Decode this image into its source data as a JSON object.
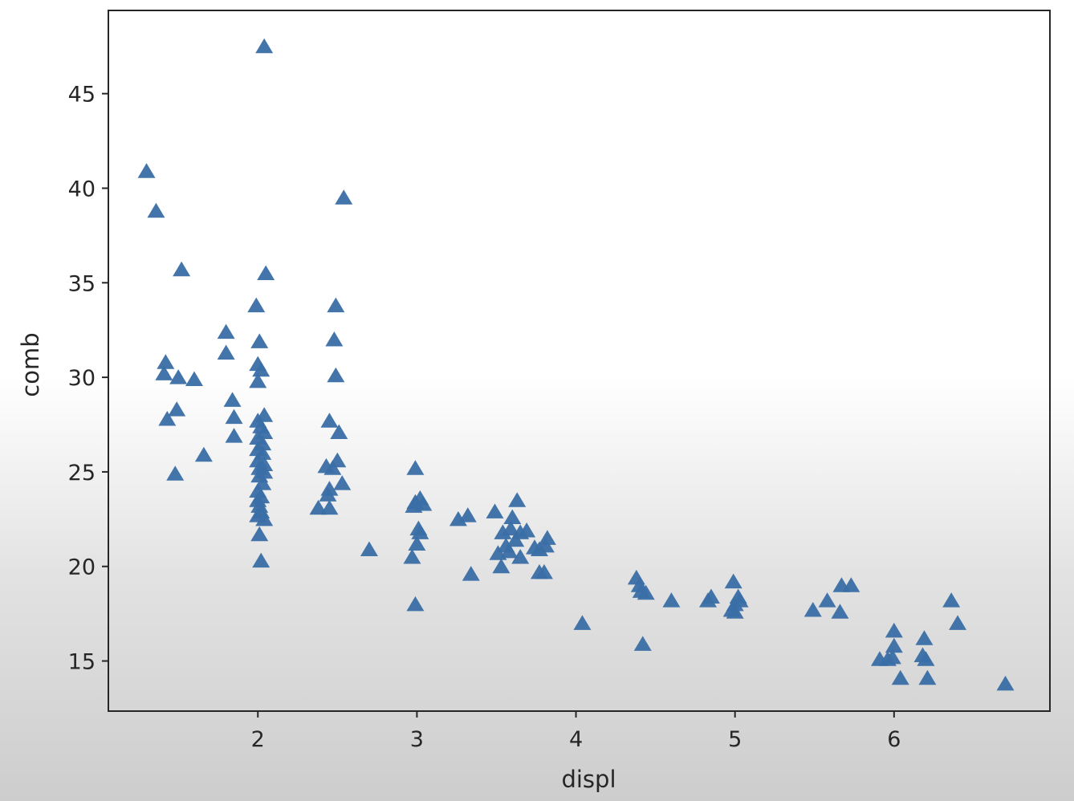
{
  "chart_data": {
    "type": "scatter",
    "title": "",
    "xlabel": "displ",
    "ylabel": "comb",
    "xlim": [
      1.06,
      6.98
    ],
    "ylim": [
      12.35,
      49.4
    ],
    "xticks": [
      2,
      3,
      4,
      5,
      6
    ],
    "yticks": [
      15,
      20,
      25,
      30,
      35,
      40,
      45
    ],
    "grid": false,
    "legend": "none",
    "marker": "triangle",
    "colors": {
      "marker": "#3a6ea5",
      "axis": "#262626"
    },
    "series": [
      {
        "x": [
          1.3,
          1.36,
          1.52,
          1.42,
          1.41,
          1.5,
          1.6,
          1.43,
          1.49,
          1.48,
          1.66,
          1.8,
          1.8,
          1.84,
          1.85,
          1.85,
          2.04,
          2.05,
          1.99,
          2.01,
          2.0,
          2.02,
          2.0,
          2.04,
          2.0,
          2.02,
          2.04,
          2.0,
          2.03,
          2.0,
          2.03,
          2.0,
          2.04,
          2.01,
          2.04,
          2.01,
          2.03,
          2.0,
          2.02,
          2.0,
          2.01,
          2.02,
          2.0,
          2.04,
          2.01,
          2.02,
          2.54,
          2.49,
          2.48,
          2.49,
          2.45,
          2.51,
          2.5,
          2.43,
          2.47,
          2.53,
          2.45,
          2.44,
          2.38,
          2.45,
          2.7,
          2.99,
          2.99,
          3.02,
          2.98,
          3.04,
          3.01,
          3.02,
          3.0,
          2.97,
          2.99,
          3.26,
          3.32,
          3.34,
          3.49,
          3.54,
          3.51,
          3.58,
          3.63,
          3.6,
          3.59,
          3.65,
          3.62,
          3.56,
          3.53,
          3.69,
          3.74,
          3.77,
          3.82,
          3.81,
          3.8,
          3.77,
          3.65,
          4.04,
          4.38,
          4.4,
          4.41,
          4.44,
          4.42,
          4.6,
          4.83,
          4.85,
          4.99,
          5.02,
          5.0,
          4.98,
          5.03,
          5.0,
          5.49,
          5.58,
          5.66,
          5.67,
          5.73,
          5.91,
          5.96,
          6.0,
          6.0,
          5.99,
          6.04,
          6.18,
          6.19,
          6.2,
          6.21,
          6.36,
          6.4,
          6.7
        ],
        "y": [
          40.9,
          38.8,
          35.7,
          30.8,
          30.2,
          30.0,
          29.9,
          27.8,
          28.3,
          24.9,
          25.9,
          32.4,
          31.3,
          28.8,
          27.9,
          26.9,
          47.5,
          35.5,
          33.8,
          31.9,
          30.7,
          30.4,
          29.8,
          28.0,
          27.7,
          27.4,
          27.1,
          26.8,
          26.5,
          26.2,
          26.0,
          25.6,
          25.4,
          25.2,
          25.0,
          24.8,
          24.4,
          24.0,
          23.7,
          23.5,
          23.2,
          22.9,
          22.7,
          22.5,
          21.7,
          20.3,
          39.5,
          33.8,
          32.0,
          30.1,
          27.7,
          27.1,
          25.6,
          25.3,
          25.2,
          24.4,
          24.1,
          23.8,
          23.1,
          23.1,
          20.9,
          25.2,
          23.4,
          23.6,
          23.2,
          23.3,
          22.0,
          21.8,
          21.2,
          20.5,
          18.0,
          22.5,
          22.7,
          19.6,
          22.9,
          21.8,
          20.7,
          20.8,
          23.5,
          22.6,
          22.0,
          21.8,
          21.4,
          21.1,
          20.0,
          21.9,
          21.0,
          20.9,
          21.5,
          21.1,
          19.7,
          19.7,
          20.5,
          17.0,
          19.4,
          19.0,
          18.7,
          18.6,
          15.9,
          18.2,
          18.2,
          18.4,
          19.2,
          18.4,
          18.0,
          17.7,
          18.2,
          17.6,
          17.7,
          18.2,
          17.6,
          19.0,
          19.0,
          15.1,
          15.1,
          16.6,
          15.8,
          15.2,
          14.1,
          15.3,
          16.2,
          15.1,
          14.1,
          18.2,
          17.0,
          13.8
        ]
      }
    ]
  }
}
